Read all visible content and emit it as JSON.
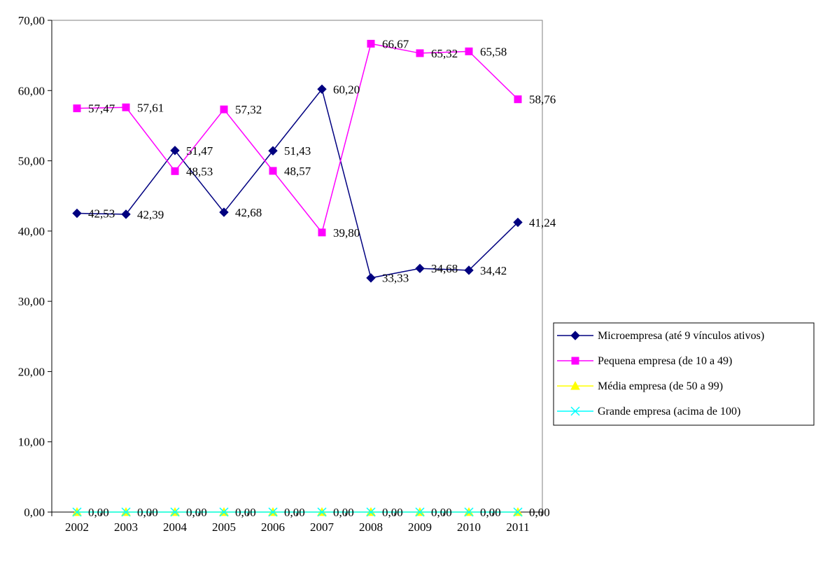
{
  "chart_data": {
    "type": "line",
    "title": "",
    "xlabel": "",
    "ylabel": "",
    "x": [
      "2002",
      "2003",
      "2004",
      "2005",
      "2006",
      "2007",
      "2008",
      "2009",
      "2010",
      "2011"
    ],
    "ylim": [
      0,
      70
    ],
    "yticks": [
      "0,00",
      "10,00",
      "20,00",
      "30,00",
      "40,00",
      "50,00",
      "60,00",
      "70,00"
    ],
    "grid": false,
    "legend_position": "right",
    "series": [
      {
        "name": "Microempresa (até 9 vínculos ativos)",
        "color": "#000080",
        "marker": "diamond",
        "values": [
          42.53,
          42.39,
          51.47,
          42.68,
          51.43,
          60.2,
          33.33,
          34.68,
          34.42,
          41.24
        ],
        "labels": [
          "42,53",
          "42,39",
          "51,47",
          "42,68",
          "51,43",
          "60,20",
          "33,33",
          "34,68",
          "34,42",
          "41,24"
        ]
      },
      {
        "name": "Pequena empresa (de 10 a 49)",
        "color": "#ff00ff",
        "marker": "square",
        "values": [
          57.47,
          57.61,
          48.53,
          57.32,
          48.57,
          39.8,
          66.67,
          65.32,
          65.58,
          58.76
        ],
        "labels": [
          "57,47",
          "57,61",
          "48,53",
          "57,32",
          "48,57",
          "39,80",
          "66,67",
          "65,32",
          "65,58",
          "58,76"
        ]
      },
      {
        "name": "Média empresa (de 50 a 99)",
        "color": "#ffff00",
        "marker": "triangle",
        "values": [
          0,
          0,
          0,
          0,
          0,
          0,
          0,
          0,
          0,
          0
        ],
        "labels": [
          "",
          "",
          "",
          "",
          "",
          "",
          "",
          "",
          "",
          ""
        ]
      },
      {
        "name": "Grande empresa (acima de 100)",
        "color": "#00ffff",
        "marker": "x",
        "values": [
          0,
          0,
          0,
          0,
          0,
          0,
          0,
          0,
          0,
          0
        ],
        "labels": [
          "0,00",
          "0,00",
          "0,00",
          "0,00",
          "0,00",
          "0,00",
          "0,00",
          "0,00",
          "0,00",
          "0,00"
        ]
      }
    ]
  }
}
